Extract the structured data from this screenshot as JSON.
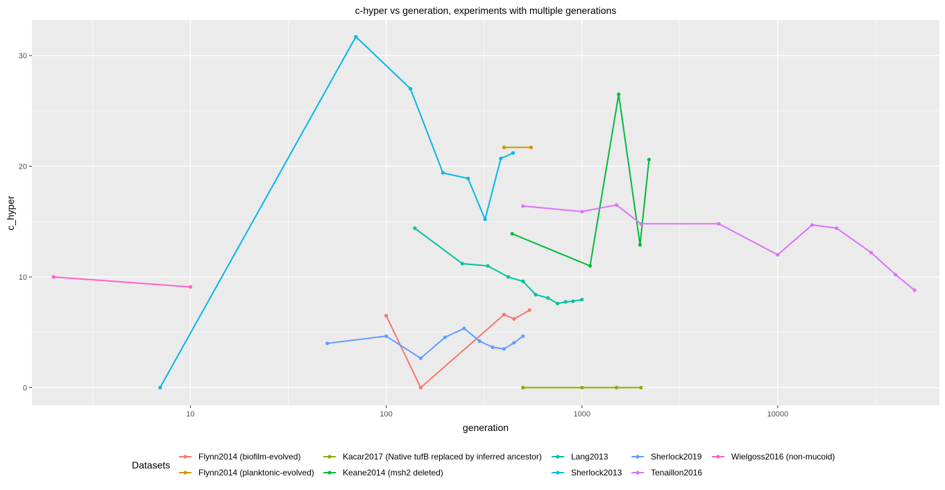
{
  "chart_data": {
    "type": "line",
    "title": "c-hyper vs generation, experiments with multiple generations",
    "xlabel": "generation",
    "ylabel": "c_hyper",
    "x_scale": "log10",
    "xlim": [
      1.55,
      67000
    ],
    "ylim": [
      -1.6,
      33.2
    ],
    "x_ticks": [
      10,
      100,
      1000,
      10000
    ],
    "x_tick_labels": [
      "10",
      "100",
      "1000",
      "10000"
    ],
    "y_ticks": [
      0,
      10,
      20,
      30
    ],
    "y_tick_labels": [
      "0",
      "10",
      "20",
      "30"
    ],
    "grid": true,
    "legend": {
      "title": "Datasets",
      "position": "bottom"
    },
    "series": [
      {
        "name": "Flynn2014 (biofilm-evolved)",
        "color": "#F8766D",
        "x": [
          100,
          150,
          400,
          450,
          540
        ],
        "y": [
          6.5,
          0,
          6.6,
          6.2,
          7.0
        ]
      },
      {
        "name": "Flynn2014 (planktonic-evolved)",
        "color": "#D39200",
        "x": [
          400,
          550
        ],
        "y": [
          21.7,
          21.7
        ]
      },
      {
        "name": "Kacar2017 (Native tufB replaced by inferred ancestor)",
        "color": "#93AA00",
        "x": [
          500,
          1000,
          1500,
          2000
        ],
        "y": [
          0,
          0,
          0,
          0
        ]
      },
      {
        "name": "Keane2014 (msh2 deleted)",
        "color": "#00BA38",
        "x": [
          440,
          1100,
          1540,
          1980,
          2200
        ],
        "y": [
          13.9,
          11.0,
          26.5,
          12.9,
          20.6
        ]
      },
      {
        "name": "Lang2013",
        "color": "#00C19F",
        "x": [
          140,
          245,
          330,
          420,
          500,
          580,
          670,
          750,
          825,
          900,
          1000
        ],
        "y": [
          14.4,
          11.2,
          11.0,
          10.0,
          9.6,
          8.4,
          8.1,
          7.6,
          7.75,
          7.8,
          7.95
        ]
      },
      {
        "name": "Sherlock2013",
        "color": "#00B9E3",
        "x": [
          7,
          70,
          133,
          195,
          262,
          320,
          385,
          445
        ],
        "y": [
          0,
          31.7,
          27.0,
          19.4,
          18.9,
          15.2,
          20.7,
          21.2
        ]
      },
      {
        "name": "Sherlock2019",
        "color": "#619CFF",
        "x": [
          50,
          100,
          150,
          200,
          250,
          300,
          350,
          400,
          450,
          500
        ],
        "y": [
          4.0,
          4.65,
          2.65,
          4.55,
          5.35,
          4.2,
          3.65,
          3.5,
          4.05,
          4.65
        ]
      },
      {
        "name": "Tenaillon2016",
        "color": "#DB72FB",
        "x": [
          500,
          1000,
          1500,
          2000,
          5000,
          10000,
          15000,
          20000,
          30000,
          40000,
          50000
        ],
        "y": [
          16.4,
          15.9,
          16.5,
          14.8,
          14.8,
          12.0,
          14.7,
          14.4,
          12.2,
          10.2,
          8.8
        ]
      },
      {
        "name": "Wielgoss2016 (non-mucoid)",
        "color": "#FF61C3",
        "x": [
          2,
          10
        ],
        "y": [
          10.0,
          9.1
        ]
      }
    ]
  }
}
